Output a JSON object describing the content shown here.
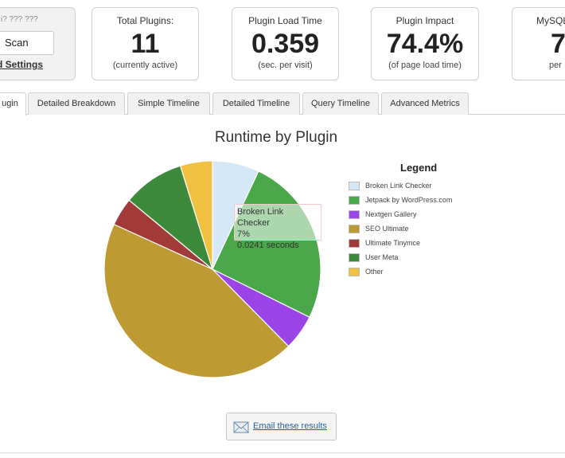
{
  "scan_panel": {
    "caption": "i? ??? ???",
    "scan_label": "Scan",
    "settings_link": "d Settings"
  },
  "stats": [
    {
      "label": "Total Plugins:",
      "value": "11",
      "sub": "(currently active)"
    },
    {
      "label": "Plugin Load Time",
      "value": "0.359",
      "sub": "(sec. per visit)"
    },
    {
      "label": "Plugin Impact",
      "value": "74.4%",
      "sub": "(of page load time)"
    },
    {
      "label": "MySQL",
      "value": "7",
      "sub": "per"
    }
  ],
  "tabs": [
    {
      "label": "ugin",
      "active": true
    },
    {
      "label": "Detailed Breakdown",
      "active": false
    },
    {
      "label": "Simple Timeline",
      "active": false
    },
    {
      "label": "Detailed Timeline",
      "active": false
    },
    {
      "label": "Query Timeline",
      "active": false
    },
    {
      "label": "Advanced Metrics",
      "active": false
    }
  ],
  "chart_data": {
    "type": "pie",
    "title": "Runtime by Plugin",
    "legend_title": "Legend",
    "legend_position": "right",
    "slices": [
      {
        "name": "Broken Link Checker",
        "value": 7,
        "color": "#d4e8f7"
      },
      {
        "name": "Jetpack by WordPress.com",
        "value": 25.3,
        "color": "#4aa84a"
      },
      {
        "name": "Nextgen Gallery",
        "value": 5.3,
        "color": "#9b45e8"
      },
      {
        "name": "SEO Ultimate",
        "value": 44.2,
        "color": "#bd9a32"
      },
      {
        "name": "Ultimate Tinymce",
        "value": 4.2,
        "color": "#a33a3a"
      },
      {
        "name": "User Meta",
        "value": 9.2,
        "color": "#3d8a3d"
      },
      {
        "name": "Other",
        "value": 4.8,
        "color": "#f0c040"
      }
    ]
  },
  "tooltip": {
    "name": "Broken Link Checker",
    "percent": "7%",
    "seconds": "0.0241 seconds"
  },
  "email_button": {
    "label": "Email these results",
    "icon": "envelope-icon"
  }
}
